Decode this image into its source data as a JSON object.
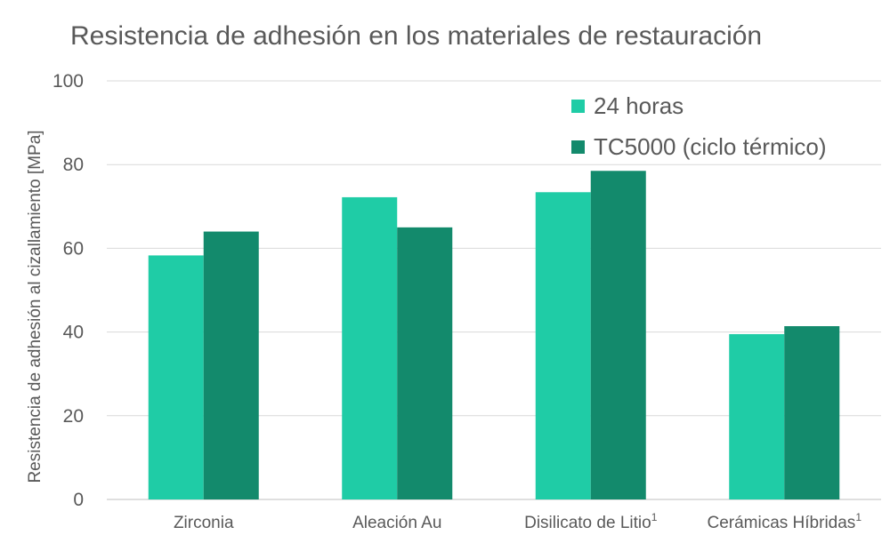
{
  "chart_data": {
    "type": "bar",
    "title": "Resistencia de adhesión en los materiales de restauración",
    "ylabel": "Resistencia de adhesión al cizallamiento [MPa]",
    "xlabel": "",
    "ylim": [
      0,
      100
    ],
    "yticks": [
      "0",
      "20",
      "40",
      "60",
      "80",
      "100"
    ],
    "categories": [
      "Zirconia",
      "Aleación Au",
      "Disilicato de Litio",
      "Cerámicas Híbridas"
    ],
    "category_superscripts": [
      "",
      "",
      "1",
      "1"
    ],
    "series": [
      {
        "name": "24 horas",
        "color": "#1fcca6",
        "values": [
          58.3,
          72.2,
          73.4,
          39.5
        ]
      },
      {
        "name": "TC5000 (ciclo térmico)",
        "color": "#138a6c",
        "values": [
          64.0,
          65.0,
          78.5,
          41.4
        ]
      }
    ],
    "grid": true,
    "legend_position": "top-right"
  }
}
